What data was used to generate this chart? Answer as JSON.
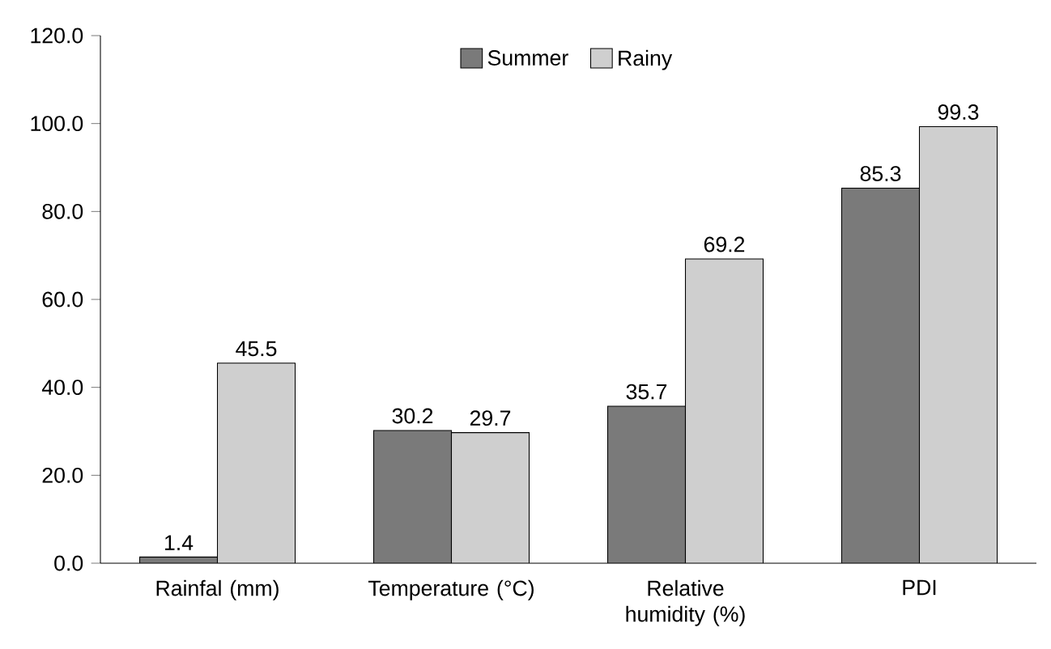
{
  "chart_data": {
    "type": "bar",
    "categories": [
      "Rainfal (mm)",
      "Temperature (°C)",
      "Relative humidity (%)",
      "PDI"
    ],
    "series": [
      {
        "name": "Summer",
        "color": "#7a7a7a",
        "values": [
          1.4,
          30.2,
          35.7,
          85.3
        ]
      },
      {
        "name": "Rainy",
        "color": "#cfcfcf",
        "values": [
          45.5,
          29.7,
          69.2,
          99.3
        ]
      }
    ],
    "ylim": [
      0,
      120
    ],
    "yticks": [
      {
        "value": 0,
        "label": "0.0"
      },
      {
        "value": 20,
        "label": "20.0"
      },
      {
        "value": 40,
        "label": "40.0"
      },
      {
        "value": 60,
        "label": "60.0"
      },
      {
        "value": 80,
        "label": "80.0"
      },
      {
        "value": 100,
        "label": "100.0"
      },
      {
        "value": 120,
        "label": "120.0"
      }
    ],
    "data_labels": true,
    "legend": "top",
    "grid": false
  }
}
